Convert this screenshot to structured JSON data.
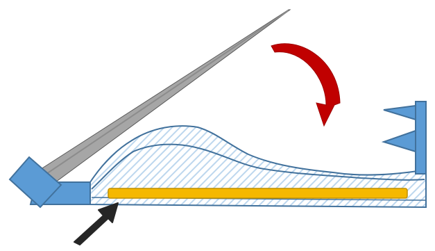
{
  "colors": {
    "background": "#ffffff",
    "blue_fill": "#5b9bd5",
    "blue_outline": "#41719c",
    "hatch_line": "#bdd7ee",
    "gray_lever": "#a6a6a6",
    "gray_outline": "#595959",
    "red_arrow": "#c00000",
    "yellow_bar": "#f5b800",
    "yellow_outline": "#bf8f00",
    "black_arrow": "#262626"
  },
  "icons": {
    "rotation_arrow": "curved-arrow-clockwise",
    "push_arrow": "arrow-up-right"
  }
}
